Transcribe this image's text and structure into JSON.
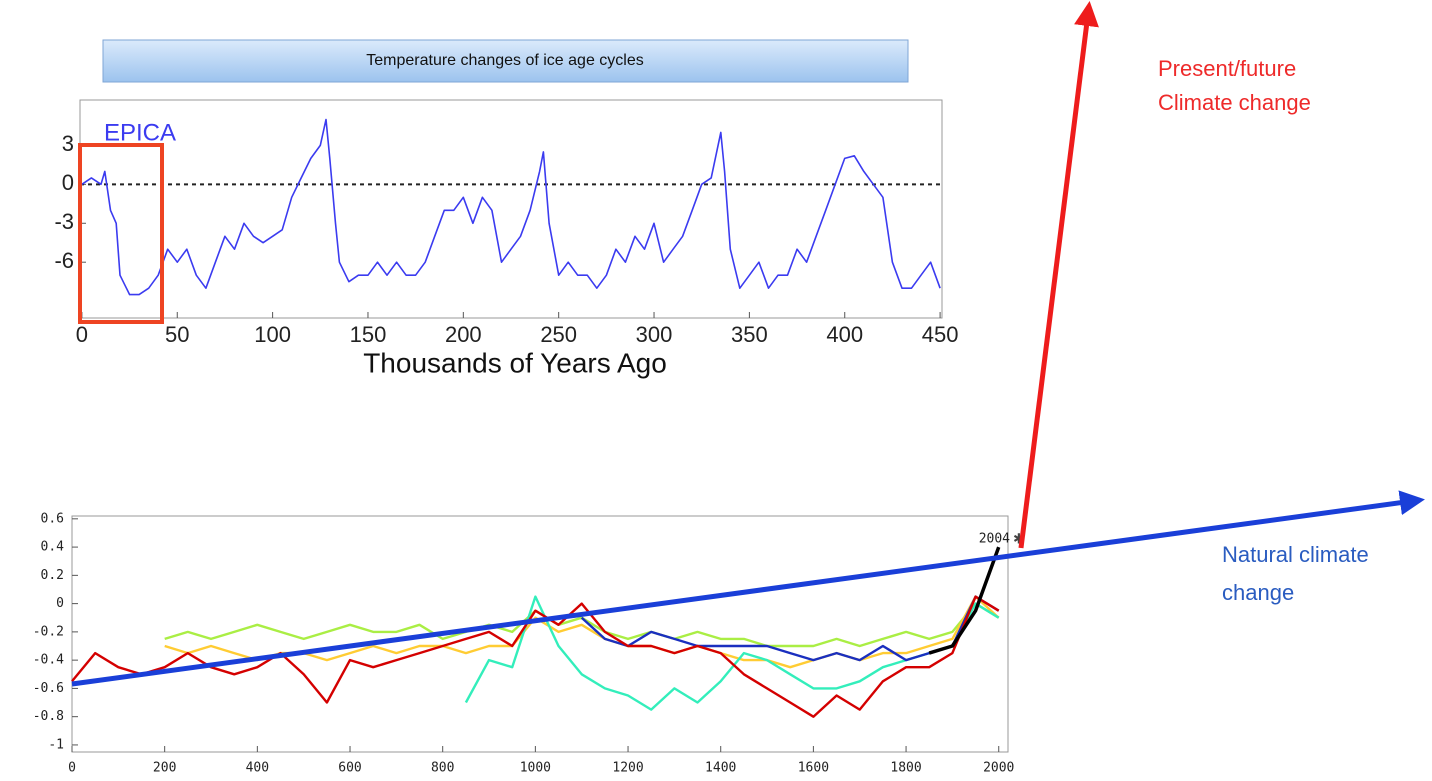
{
  "chart_data": [
    {
      "type": "line",
      "title": "Temperature changes of ice age cycles",
      "annotation": "EPICA",
      "xlabel": "Thousands of Years Ago",
      "x": [
        0,
        5,
        10,
        12,
        15,
        18,
        20,
        25,
        30,
        35,
        40,
        45,
        50,
        55,
        60,
        65,
        70,
        75,
        80,
        85,
        90,
        95,
        100,
        105,
        110,
        115,
        120,
        125,
        128,
        130,
        133,
        135,
        140,
        145,
        150,
        155,
        160,
        165,
        170,
        175,
        180,
        185,
        190,
        195,
        200,
        205,
        210,
        215,
        220,
        225,
        230,
        235,
        240,
        242,
        245,
        250,
        255,
        260,
        265,
        270,
        275,
        280,
        285,
        290,
        295,
        300,
        305,
        310,
        315,
        320,
        325,
        330,
        335,
        337,
        340,
        345,
        350,
        355,
        360,
        365,
        370,
        375,
        380,
        385,
        390,
        395,
        400,
        405,
        410,
        415,
        420,
        425,
        430,
        435,
        440,
        445,
        450
      ],
      "series": [
        {
          "color": "#3b3bf0",
          "values": [
            0,
            0.5,
            0,
            1,
            -2,
            -3,
            -7,
            -8.5,
            -8.5,
            -8,
            -7,
            -5,
            -6,
            -5,
            -7,
            -8,
            -6,
            -4,
            -5,
            -3,
            -4,
            -4.5,
            -4,
            -3.5,
            -1,
            0.5,
            2,
            3,
            5,
            2,
            -3,
            -6,
            -7.5,
            -7,
            -7,
            -6,
            -7,
            -6,
            -7,
            -7,
            -6,
            -4,
            -2,
            -2,
            -1,
            -3,
            -1,
            -2,
            -6,
            -5,
            -4,
            -2,
            1,
            2.5,
            -3,
            -7,
            -6,
            -7,
            -7,
            -8,
            -7,
            -5,
            -6,
            -4,
            -5,
            -3,
            -6,
            -5,
            -4,
            -2,
            0,
            0.5,
            4,
            1,
            -5,
            -8,
            -7,
            -6,
            -8,
            -7,
            -7,
            -5,
            -6,
            -4,
            -2,
            0,
            2,
            2.2,
            1,
            0,
            -1,
            -6,
            -8,
            -8,
            -7,
            -6,
            -8
          ]
        }
      ],
      "xlim": [
        -1,
        451
      ],
      "ylim": [
        -10.3,
        6.5
      ],
      "xticks": [
        0,
        50,
        100,
        150,
        200,
        250,
        300,
        350,
        400,
        450
      ],
      "yticks": [
        -6,
        -3,
        0,
        3
      ],
      "reference_line": 0
    },
    {
      "type": "line",
      "annotation": "2004",
      "x": [
        0,
        50,
        100,
        150,
        200,
        250,
        300,
        350,
        400,
        450,
        500,
        550,
        600,
        650,
        700,
        750,
        800,
        850,
        900,
        950,
        1000,
        1050,
        1100,
        1150,
        1200,
        1250,
        1300,
        1350,
        1400,
        1450,
        1500,
        1550,
        1600,
        1650,
        1700,
        1750,
        1800,
        1850,
        1900,
        1950,
        2000
      ],
      "series": [
        {
          "color": "#aaee44",
          "values": [
            null,
            null,
            null,
            null,
            -0.25,
            -0.2,
            -0.25,
            -0.2,
            -0.15,
            -0.2,
            -0.25,
            -0.2,
            -0.15,
            -0.2,
            -0.2,
            -0.15,
            -0.25,
            -0.2,
            -0.15,
            -0.2,
            -0.05,
            -0.15,
            -0.1,
            -0.2,
            -0.25,
            -0.2,
            -0.25,
            -0.2,
            -0.25,
            -0.25,
            -0.3,
            -0.3,
            -0.3,
            -0.25,
            -0.3,
            -0.25,
            -0.2,
            -0.25,
            -0.2,
            0,
            -0.1
          ]
        },
        {
          "color": "#ffcc33",
          "values": [
            null,
            null,
            null,
            null,
            -0.3,
            -0.35,
            -0.3,
            -0.35,
            -0.4,
            -0.35,
            -0.35,
            -0.4,
            -0.35,
            -0.3,
            -0.35,
            -0.3,
            -0.3,
            -0.35,
            -0.3,
            -0.3,
            -0.1,
            -0.2,
            -0.15,
            -0.25,
            -0.3,
            -0.3,
            -0.35,
            -0.3,
            -0.35,
            -0.4,
            -0.4,
            -0.45,
            -0.4,
            -0.35,
            -0.4,
            -0.35,
            -0.35,
            -0.3,
            -0.25,
            0.05,
            -0.1
          ]
        },
        {
          "color": "#33eebb",
          "values": [
            null,
            null,
            null,
            null,
            null,
            null,
            null,
            null,
            null,
            null,
            null,
            null,
            null,
            null,
            null,
            null,
            null,
            -0.7,
            -0.4,
            -0.45,
            0.05,
            -0.3,
            -0.5,
            -0.6,
            -0.65,
            -0.75,
            -0.6,
            -0.7,
            -0.55,
            -0.35,
            -0.4,
            -0.5,
            -0.6,
            -0.6,
            -0.55,
            -0.45,
            -0.4,
            -0.35,
            -0.3,
            0,
            -0.1
          ]
        },
        {
          "color": "#1a2fbf",
          "values": [
            null,
            null,
            null,
            null,
            null,
            null,
            null,
            null,
            null,
            null,
            null,
            null,
            null,
            null,
            null,
            null,
            null,
            null,
            null,
            null,
            null,
            null,
            -0.1,
            -0.25,
            -0.3,
            -0.2,
            -0.25,
            -0.3,
            -0.3,
            -0.3,
            -0.3,
            -0.35,
            -0.4,
            -0.35,
            -0.4,
            -0.3,
            -0.4,
            -0.35,
            -0.3,
            0.05,
            -0.05
          ]
        },
        {
          "color": "#d40000",
          "values": [
            -0.55,
            -0.35,
            -0.45,
            -0.5,
            -0.45,
            -0.35,
            -0.45,
            -0.5,
            -0.45,
            -0.35,
            -0.5,
            -0.7,
            -0.4,
            -0.45,
            -0.4,
            -0.35,
            -0.3,
            -0.25,
            -0.2,
            -0.3,
            -0.05,
            -0.15,
            0,
            -0.2,
            -0.3,
            -0.3,
            -0.35,
            -0.3,
            -0.35,
            -0.5,
            -0.6,
            -0.7,
            -0.8,
            -0.65,
            -0.75,
            -0.55,
            -0.45,
            -0.45,
            -0.35,
            0.05,
            -0.05
          ]
        },
        {
          "color": "#000000",
          "values": [
            null,
            null,
            null,
            null,
            null,
            null,
            null,
            null,
            null,
            null,
            null,
            null,
            null,
            null,
            null,
            null,
            null,
            null,
            null,
            null,
            null,
            null,
            null,
            null,
            null,
            null,
            null,
            null,
            null,
            null,
            null,
            null,
            null,
            null,
            null,
            null,
            null,
            -0.35,
            -0.3,
            -0.05,
            0.4
          ]
        }
      ],
      "xlim": [
        0,
        2020
      ],
      "ylim": [
        -1.05,
        0.62
      ],
      "xticks": [
        0,
        200,
        400,
        600,
        800,
        1000,
        1200,
        1400,
        1600,
        1800,
        2000
      ],
      "yticks": [
        0.6,
        0.4,
        0.2,
        0,
        -0.2,
        -0.4,
        -0.6,
        -0.8,
        -1
      ]
    }
  ],
  "annotations": {
    "present_future": [
      "Present/future",
      "Climate change"
    ],
    "natural": [
      "Natural climate",
      "change"
    ]
  }
}
